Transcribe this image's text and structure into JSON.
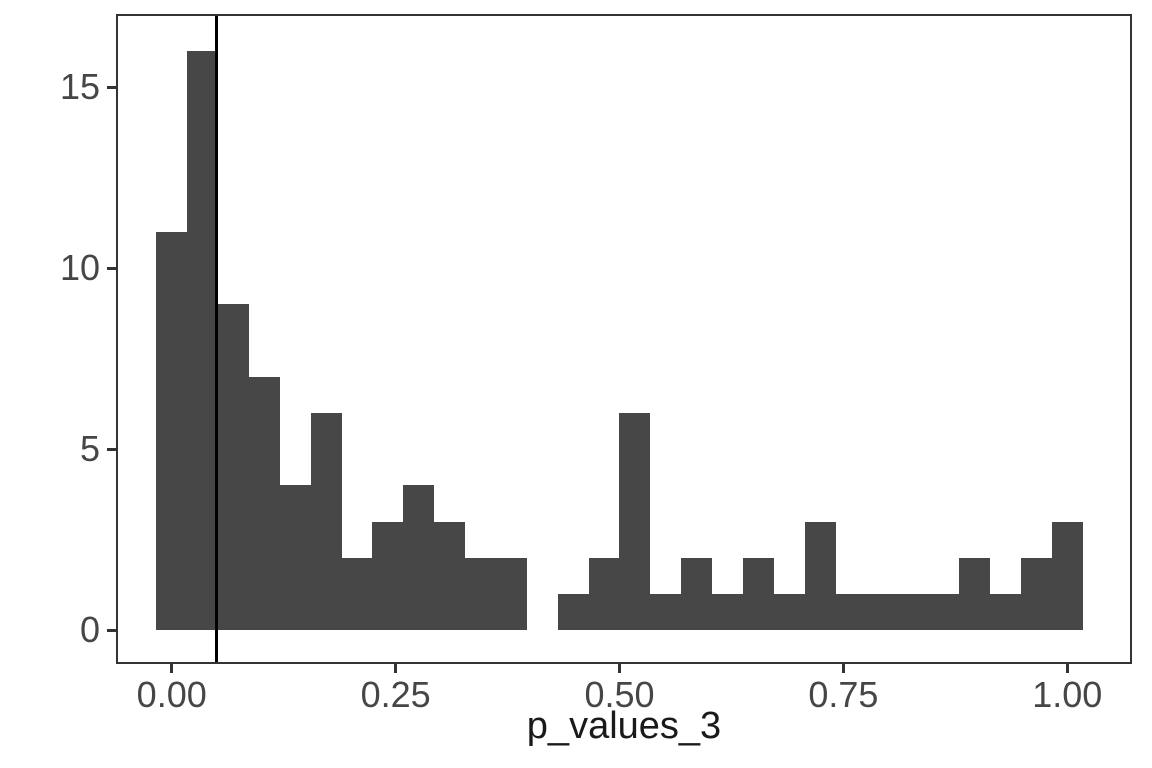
{
  "chart_data": {
    "type": "bar",
    "subtype": "histogram",
    "title": "",
    "xlabel": "p_values_3",
    "ylabel": "",
    "bar_color": "#474747",
    "vline": {
      "x": 0.05,
      "color": "#000000"
    },
    "bin_width": 0.034483,
    "bin_centers": [
      0.0,
      0.0345,
      0.069,
      0.1034,
      0.1379,
      0.1724,
      0.2069,
      0.2414,
      0.2759,
      0.3103,
      0.3448,
      0.3793,
      0.4138,
      0.4483,
      0.4828,
      0.5172,
      0.5517,
      0.5862,
      0.6207,
      0.6552,
      0.6897,
      0.7241,
      0.7586,
      0.7931,
      0.8276,
      0.8621,
      0.8966,
      0.931,
      0.9655,
      1.0
    ],
    "counts": [
      11,
      16,
      9,
      7,
      4,
      6,
      2,
      3,
      4,
      3,
      2,
      2,
      0,
      1,
      2,
      6,
      1,
      2,
      1,
      2,
      1,
      3,
      1,
      1,
      1,
      1,
      2,
      1,
      2,
      3
    ],
    "x_ticks": {
      "values": [
        0.0,
        0.25,
        0.5,
        0.75,
        1.0
      ],
      "labels": [
        "0.00",
        "0.25",
        "0.50",
        "0.75",
        "1.00"
      ]
    },
    "y_ticks": {
      "values": [
        0,
        5,
        10,
        15
      ],
      "labels": [
        "0",
        "5",
        "10",
        "15"
      ]
    },
    "xlim": [
      -0.06,
      1.07
    ],
    "ylim": [
      -0.88,
      16.97
    ],
    "grid": false,
    "legend": false
  }
}
